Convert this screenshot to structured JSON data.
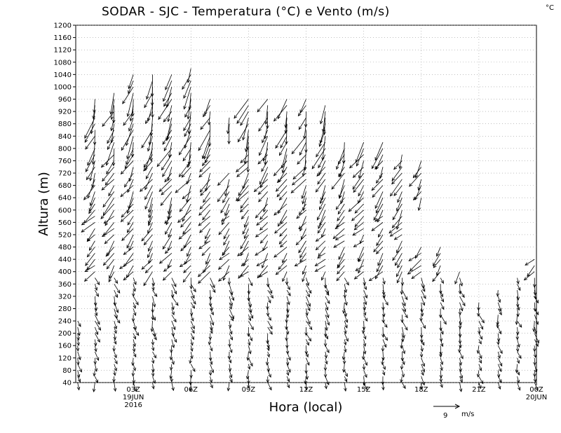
{
  "chart_data": {
    "type": "vector-field",
    "title": "SODAR - SJC - Temperatura (°C) e Vento (m/s)",
    "corner_unit": "°C",
    "xlabel": "Hora (local)",
    "ylabel": "Altura (m)",
    "ylim": [
      40,
      1200
    ],
    "y_ticks": [
      40,
      80,
      120,
      160,
      200,
      240,
      280,
      320,
      360,
      400,
      440,
      480,
      520,
      560,
      600,
      640,
      680,
      720,
      760,
      800,
      840,
      880,
      920,
      960,
      1000,
      1040,
      1080,
      1120,
      1160,
      1200
    ],
    "xlim_hours": [
      0,
      24
    ],
    "x_ticks": [
      {
        "hour": 3,
        "label": "03Z",
        "date": "19JUN",
        "year": "2016"
      },
      {
        "hour": 6,
        "label": "06Z"
      },
      {
        "hour": 9,
        "label": "09Z"
      },
      {
        "hour": 12,
        "label": "12Z"
      },
      {
        "hour": 15,
        "label": "15Z"
      },
      {
        "hour": 18,
        "label": "18Z"
      },
      {
        "hour": 21,
        "label": "21Z"
      },
      {
        "hour": 24,
        "label": "00Z",
        "date": "20JUN"
      }
    ],
    "grid": "dotted",
    "reference_vector": {
      "speed": 9,
      "unit": "m/s",
      "label": "9"
    },
    "profile_hours": [
      0.1,
      1,
      2,
      3,
      4,
      5,
      6,
      7,
      8,
      9,
      10,
      11,
      12,
      13,
      14,
      15,
      16,
      17,
      18,
      19,
      20,
      21,
      22,
      23,
      23.9
    ],
    "profile_top_height_m": [
      240,
      960,
      980,
      1040,
      1040,
      1040,
      1060,
      960,
      900,
      960,
      960,
      960,
      960,
      940,
      820,
      820,
      820,
      780,
      760,
      480,
      400,
      300,
      340,
      380,
      440
    ],
    "profile_gaps_m": [
      [],
      [],
      [],
      [],
      [],
      [],
      [],
      [],
      [
        720,
        880
      ],
      [],
      [],
      [],
      [],
      [],
      [],
      [],
      [],
      [],
      [
        480,
        640
      ],
      [],
      [],
      [],
      [],
      [],
      []
    ],
    "wind_by_layer": [
      {
        "min_height_m": 40,
        "max_height_m": 200,
        "direction_deg": 350,
        "speed_ms": 2.5
      },
      {
        "min_height_m": 200,
        "max_height_m": 400,
        "direction_deg": 345,
        "speed_ms": 3.0
      },
      {
        "min_height_m": 400,
        "max_height_m": 600,
        "direction_deg": 40,
        "speed_ms": 4.5
      },
      {
        "min_height_m": 600,
        "max_height_m": 800,
        "direction_deg": 30,
        "speed_ms": 5.5
      },
      {
        "min_height_m": 800,
        "max_height_m": 1100,
        "direction_deg": 20,
        "speed_ms": 6.5
      }
    ]
  }
}
